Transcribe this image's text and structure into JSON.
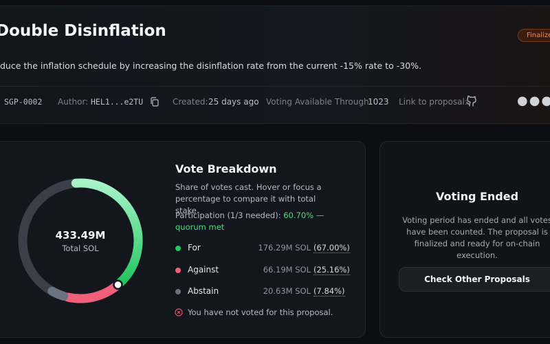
{
  "header": {
    "title": "Double Disinflation",
    "status": "Finalized",
    "description": "duce the inflation schedule by increasing the disinflation rate from the current -15% rate to -30%."
  },
  "meta": {
    "id": "SGP-0002",
    "author_label": "Author:",
    "author": "HEL1...e2TU",
    "created_label": "Created:",
    "created": "25 days ago",
    "voting_label": "Voting Available Through:",
    "voting": "1023",
    "link_label": "Link to proposal:"
  },
  "vote_breakdown": {
    "title": "Vote Breakdown",
    "subtitle": "Share of votes cast. Hover or focus a percentage to compare it with total stake.",
    "participation_label": "Participation (1/3 needed):",
    "participation": 60.7,
    "participation_text": "60.70% — quorum met",
    "total": "433.49M",
    "total_label": "Total SOL",
    "options": [
      {
        "name": "For",
        "amount": "176.29M SOL",
        "percent": 67.0,
        "percent_label": "(67.00%)",
        "color": "#22c55e"
      },
      {
        "name": "Against",
        "amount": "66.19M SOL",
        "percent": 25.16,
        "percent_label": "(25.16%)",
        "color": "#f0607a"
      },
      {
        "name": "Abstain",
        "amount": "20.63M SOL",
        "percent": 7.84,
        "percent_label": "(7.84%)",
        "color": "#6b7280"
      }
    ],
    "not_voted": "You have not voted for this proposal."
  },
  "voting_ended": {
    "title": "Voting Ended",
    "text": "Voting period has ended and all votes have been counted. The proposal is finalized and ready for on-chain execution.",
    "button": "Check Other Proposals"
  }
}
